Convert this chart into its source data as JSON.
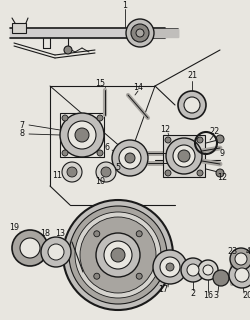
{
  "bg_color": "#e8e6e0",
  "line_color": "#1a1a1a",
  "figsize": [
    2.5,
    3.2
  ],
  "dpi": 100,
  "label_fs": 5.8,
  "lw_main": 0.8,
  "lw_thin": 0.5,
  "lw_thick": 1.5
}
